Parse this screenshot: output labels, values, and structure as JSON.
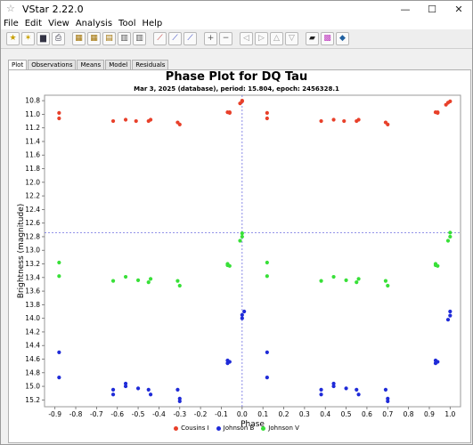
{
  "window": {
    "title": "VStar 2.22.0",
    "app_icon": "star-icon",
    "controls": [
      "minimize-icon",
      "maximize-icon",
      "close-icon"
    ]
  },
  "menu": [
    "File",
    "Edit",
    "View",
    "Analysis",
    "Tool",
    "Help"
  ],
  "toolbar": {
    "buttons": [
      "new-star-icon",
      "new-star-file-icon",
      "save-icon",
      "print-icon",
      "info-icon",
      "filter-icon",
      "magnify-icon",
      "periodogram-icon",
      "model-icon",
      "polynomial-icon",
      "phase-plot-icon",
      "zoom-in-icon",
      "zoom-out-icon",
      "pan-left-icon",
      "pan-right-icon",
      "pan-up-icon",
      "pan-down-icon",
      "plugin-icon",
      "observer-icon",
      "console-icon"
    ]
  },
  "tabs": [
    {
      "label": "Plot",
      "active": true
    },
    {
      "label": "Observations",
      "active": false
    },
    {
      "label": "Means",
      "active": false
    },
    {
      "label": "Model",
      "active": false
    },
    {
      "label": "Residuals",
      "active": false
    }
  ],
  "colors": {
    "cousins_i": "#e8402a",
    "johnson_b": "#1f2bd8",
    "johnson_v": "#38e038",
    "crosshair": "#6f6fe0"
  },
  "chart_data": {
    "type": "scatter",
    "title": "Phase Plot for DQ Tau",
    "subtitle": "Mar 3, 2025 (database), period: 15.804, epoch: 2456328.1",
    "xlabel": "Phase",
    "ylabel": "Brightness (magnitude)",
    "xlim": [
      -0.95,
      1.05
    ],
    "ylim": [
      10.72,
      15.3
    ],
    "y_inverted": true,
    "x_ticks": [
      "-0.9",
      "-0.8",
      "-0.7",
      "-0.6",
      "-0.5",
      "-0.4",
      "-0.3",
      "-0.2",
      "-0.1",
      "0.0",
      "0.1",
      "0.2",
      "0.3",
      "0.4",
      "0.5",
      "0.6",
      "0.7",
      "0.8",
      "0.9",
      "1.0"
    ],
    "x_tick_values": [
      -0.9,
      -0.8,
      -0.7,
      -0.6,
      -0.5,
      -0.4,
      -0.3,
      -0.2,
      -0.1,
      0.0,
      0.1,
      0.2,
      0.3,
      0.4,
      0.5,
      0.6,
      0.7,
      0.8,
      0.9,
      1.0
    ],
    "y_ticks": [
      "10.8",
      "11.0",
      "11.2",
      "11.4",
      "11.6",
      "11.8",
      "12.0",
      "12.2",
      "12.4",
      "12.6",
      "12.8",
      "13.0",
      "13.2",
      "13.4",
      "13.6",
      "13.8",
      "14.0",
      "14.2",
      "14.4",
      "14.6",
      "14.8",
      "15.0",
      "15.2"
    ],
    "y_tick_values": [
      10.8,
      11.0,
      11.2,
      11.4,
      11.6,
      11.8,
      12.0,
      12.2,
      12.4,
      12.6,
      12.8,
      13.0,
      13.2,
      13.4,
      13.6,
      13.8,
      14.0,
      14.2,
      14.4,
      14.6,
      14.8,
      15.0,
      15.2
    ],
    "crosshair": {
      "x": 0.0,
      "y": 12.74
    },
    "legend_position": "bottom",
    "series": [
      {
        "name": "Cousins I",
        "color_key": "cousins_i",
        "points": [
          [
            -0.88,
            10.98
          ],
          [
            -0.88,
            11.06
          ],
          [
            -0.62,
            11.1
          ],
          [
            -0.56,
            11.08
          ],
          [
            -0.51,
            11.1
          ],
          [
            -0.45,
            11.1
          ],
          [
            -0.44,
            11.08
          ],
          [
            -0.31,
            11.12
          ],
          [
            -0.3,
            11.15
          ],
          [
            -0.07,
            10.97
          ],
          [
            -0.06,
            10.98
          ],
          [
            -0.06,
            10.97
          ],
          [
            -0.01,
            10.84
          ],
          [
            0.0,
            10.81
          ],
          [
            0.0,
            10.8
          ],
          [
            0.12,
            10.98
          ],
          [
            0.12,
            11.06
          ],
          [
            0.38,
            11.1
          ],
          [
            0.44,
            11.08
          ],
          [
            0.49,
            11.1
          ],
          [
            0.55,
            11.1
          ],
          [
            0.56,
            11.08
          ],
          [
            0.69,
            11.12
          ],
          [
            0.7,
            11.15
          ],
          [
            0.93,
            10.97
          ],
          [
            0.94,
            10.98
          ],
          [
            0.94,
            10.97
          ],
          [
            0.98,
            10.86
          ],
          [
            0.99,
            10.83
          ],
          [
            1.0,
            10.81
          ]
        ]
      },
      {
        "name": "Johnson B",
        "color_key": "johnson_b",
        "points": [
          [
            -0.88,
            14.5
          ],
          [
            -0.88,
            14.87
          ],
          [
            -0.62,
            15.05
          ],
          [
            -0.62,
            15.12
          ],
          [
            -0.56,
            14.96
          ],
          [
            -0.56,
            15.0
          ],
          [
            -0.5,
            15.03
          ],
          [
            -0.45,
            15.05
          ],
          [
            -0.44,
            15.12
          ],
          [
            -0.31,
            15.05
          ],
          [
            -0.3,
            15.18
          ],
          [
            -0.3,
            15.22
          ],
          [
            -0.07,
            14.62
          ],
          [
            -0.06,
            14.64
          ],
          [
            -0.07,
            14.66
          ],
          [
            0.0,
            14.0
          ],
          [
            0.0,
            13.95
          ],
          [
            0.01,
            13.9
          ],
          [
            0.12,
            14.5
          ],
          [
            0.12,
            14.87
          ],
          [
            0.38,
            15.05
          ],
          [
            0.38,
            15.12
          ],
          [
            0.44,
            14.96
          ],
          [
            0.44,
            15.0
          ],
          [
            0.5,
            15.03
          ],
          [
            0.55,
            15.05
          ],
          [
            0.56,
            15.12
          ],
          [
            0.69,
            15.05
          ],
          [
            0.7,
            15.18
          ],
          [
            0.7,
            15.22
          ],
          [
            0.93,
            14.62
          ],
          [
            0.94,
            14.64
          ],
          [
            0.93,
            14.66
          ],
          [
            0.99,
            14.02
          ],
          [
            1.0,
            13.96
          ],
          [
            1.0,
            13.9
          ]
        ]
      },
      {
        "name": "Johnson V",
        "color_key": "johnson_v",
        "points": [
          [
            -0.88,
            13.18
          ],
          [
            -0.88,
            13.38
          ],
          [
            -0.62,
            13.45
          ],
          [
            -0.56,
            13.39
          ],
          [
            -0.5,
            13.44
          ],
          [
            -0.45,
            13.47
          ],
          [
            -0.44,
            13.42
          ],
          [
            -0.31,
            13.45
          ],
          [
            -0.3,
            13.52
          ],
          [
            -0.07,
            13.2
          ],
          [
            -0.06,
            13.23
          ],
          [
            -0.07,
            13.22
          ],
          [
            -0.01,
            12.86
          ],
          [
            0.0,
            12.8
          ],
          [
            0.0,
            12.75
          ],
          [
            0.12,
            13.18
          ],
          [
            0.12,
            13.38
          ],
          [
            0.38,
            13.45
          ],
          [
            0.44,
            13.39
          ],
          [
            0.5,
            13.44
          ],
          [
            0.55,
            13.47
          ],
          [
            0.56,
            13.42
          ],
          [
            0.69,
            13.45
          ],
          [
            0.7,
            13.52
          ],
          [
            0.93,
            13.2
          ],
          [
            0.94,
            13.23
          ],
          [
            0.93,
            13.22
          ],
          [
            0.99,
            12.86
          ],
          [
            1.0,
            12.8
          ],
          [
            1.0,
            12.74
          ]
        ]
      }
    ]
  }
}
